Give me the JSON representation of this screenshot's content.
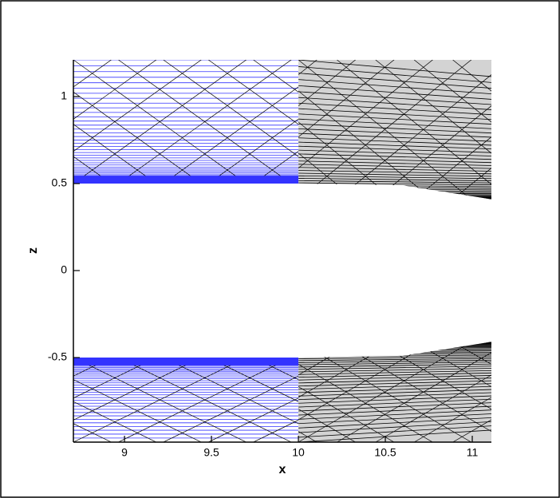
{
  "chart_data": {
    "type": "mesh",
    "xlabel": "x",
    "ylabel": "z",
    "xlim": [
      8.706,
      11.11
    ],
    "ylim": [
      -0.986,
      1.211
    ],
    "xticks": [
      9,
      9.5,
      10,
      10.5,
      11
    ],
    "yticks": [
      1,
      0.5,
      0,
      -0.5
    ],
    "zones": [
      {
        "fill": "#d3d3d3",
        "line": "#000000",
        "x": [
          10,
          10.6,
          11.11,
          11.11,
          10
        ],
        "z": [
          0.5,
          0.49,
          0.41,
          1.211,
          1.211
        ]
      },
      {
        "fill": "#d3d3d3",
        "line": "#000000",
        "x": [
          10,
          10.6,
          11.11,
          11.11,
          10
        ],
        "z": [
          -0.5,
          -0.49,
          -0.41,
          -0.986,
          -0.986
        ]
      },
      {
        "fill": "#ffffff",
        "line": "#3333ff",
        "x": [
          8.706,
          10,
          10,
          8.706
        ],
        "z": [
          0.5,
          0.5,
          1.211,
          1.211
        ]
      },
      {
        "fill": "#ffffff",
        "line": "#3333ff",
        "x": [
          8.706,
          10,
          10,
          8.706
        ],
        "z": [
          -0.5,
          -0.5,
          -0.986,
          -0.986
        ]
      },
      {
        "fill": "#3333ff",
        "x": [
          8.706,
          10,
          10,
          8.706
        ],
        "z": [
          0.5,
          0.5,
          0.545,
          0.545
        ]
      },
      {
        "fill": "#3333ff",
        "x": [
          8.706,
          10,
          10,
          8.706
        ],
        "z": [
          -0.5,
          -0.5,
          -0.545,
          -0.545
        ]
      }
    ]
  }
}
